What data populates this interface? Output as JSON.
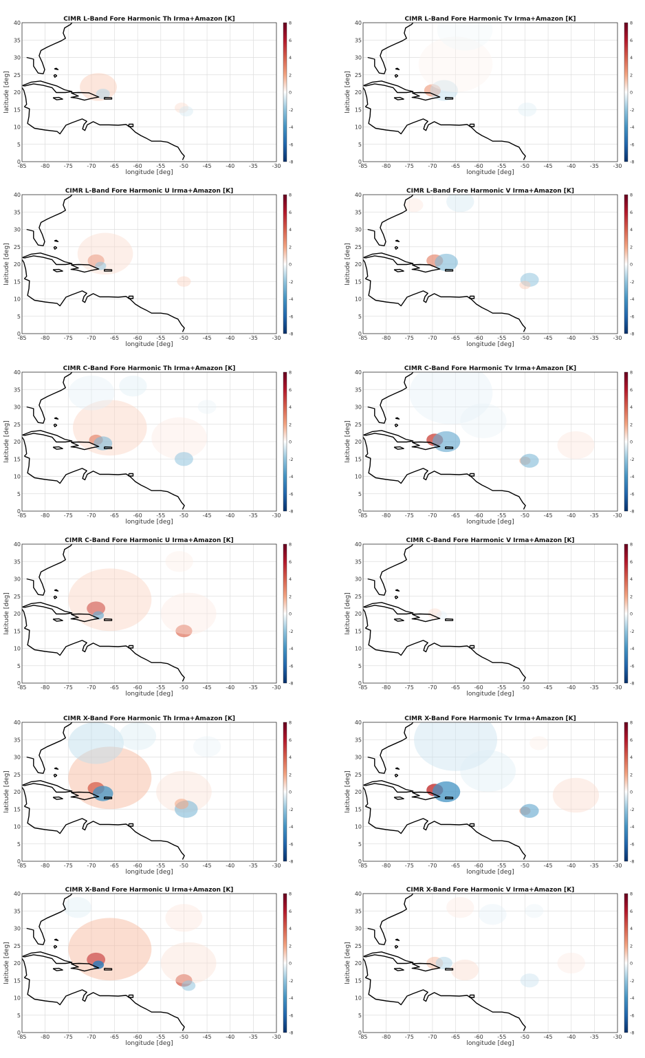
{
  "figure": {
    "colorbar": {
      "range": [
        -8,
        8
      ],
      "ticks": [
        8,
        6,
        4,
        2,
        0,
        -2,
        -4,
        -6,
        -8
      ],
      "colormap": [
        "#08306b",
        "#2166ac",
        "#4393c3",
        "#92c5de",
        "#ffffff",
        "#f4a582",
        "#d6604d",
        "#b2182b",
        "#67001f"
      ]
    },
    "axes": {
      "x_ticks": [
        -85,
        -80,
        -75,
        -70,
        -65,
        -60,
        -55,
        -50,
        -45,
        -40,
        -35,
        -30
      ],
      "y_ticks": [
        0,
        5,
        10,
        15,
        20,
        25,
        30,
        35,
        40
      ],
      "xlabel": "longitude [deg]",
      "ylabel": "latitude [deg]",
      "xlim": [
        -85,
        -30
      ],
      "ylim": [
        0,
        40
      ]
    },
    "coastline_color": "#000000",
    "grid": true
  },
  "panels": [
    {
      "title": "CIMR L-Band Fore Harmonic Th Irma+Amazon [K]",
      "features": [
        {
          "lon": -68.5,
          "lat": 21.5,
          "value": 1.2,
          "r": 4
        },
        {
          "lon": -67.5,
          "lat": 19.5,
          "value": -1.5,
          "r": 1.5
        },
        {
          "lon": -50.5,
          "lat": 15.5,
          "value": 0.8,
          "r": 1.5
        },
        {
          "lon": -49.5,
          "lat": 14.5,
          "value": -0.8,
          "r": 1.5
        }
      ]
    },
    {
      "title": "CIMR L-Band Fore Harmonic Tv Irma+Amazon [K]",
      "features": [
        {
          "lon": -70,
          "lat": 20.5,
          "value": 2.5,
          "r": 1.8
        },
        {
          "lon": -67.5,
          "lat": 20.5,
          "value": -1.2,
          "r": 3
        },
        {
          "lon": -65,
          "lat": 28,
          "value": 0.3,
          "r": 8
        },
        {
          "lon": -63,
          "lat": 38,
          "value": -0.3,
          "r": 6
        },
        {
          "lon": -49.5,
          "lat": 15,
          "value": -0.6,
          "r": 2
        }
      ]
    },
    {
      "title": "CIMR L-Band Fore Harmonic U Irma+Amazon [K]",
      "features": [
        {
          "lon": -69,
          "lat": 21,
          "value": 3,
          "r": 1.8
        },
        {
          "lon": -67,
          "lat": 23,
          "value": 0.8,
          "r": 6
        },
        {
          "lon": -68,
          "lat": 19.5,
          "value": -2,
          "r": 1.2
        },
        {
          "lon": -50,
          "lat": 15,
          "value": 1,
          "r": 1.5
        }
      ]
    },
    {
      "title": "CIMR L-Band Fore Harmonic V Irma+Amazon [K]",
      "features": [
        {
          "lon": -69.5,
          "lat": 21,
          "value": 3,
          "r": 1.8
        },
        {
          "lon": -67,
          "lat": 20.5,
          "value": -2.5,
          "r": 2.5
        },
        {
          "lon": -64,
          "lat": 38,
          "value": -0.8,
          "r": 3
        },
        {
          "lon": -74,
          "lat": 37,
          "value": 0.6,
          "r": 2
        },
        {
          "lon": -49,
          "lat": 15.5,
          "value": -2,
          "r": 2
        },
        {
          "lon": -50,
          "lat": 14,
          "value": 1.2,
          "r": 1.2
        }
      ]
    },
    {
      "title": "CIMR C-Band Fore Harmonic Th Irma+Amazon [K]",
      "features": [
        {
          "lon": -66,
          "lat": 24,
          "value": 1,
          "r": 8
        },
        {
          "lon": -69,
          "lat": 20.5,
          "value": 3,
          "r": 1.5
        },
        {
          "lon": -67.5,
          "lat": 19.5,
          "value": -2.5,
          "r": 2
        },
        {
          "lon": -70,
          "lat": 34,
          "value": -0.5,
          "r": 5
        },
        {
          "lon": -61,
          "lat": 36,
          "value": -0.6,
          "r": 3
        },
        {
          "lon": -51,
          "lat": 21,
          "value": 0.5,
          "r": 6
        },
        {
          "lon": -50,
          "lat": 15,
          "value": -2,
          "r": 2
        },
        {
          "lon": -45,
          "lat": 30,
          "value": -0.4,
          "r": 2
        }
      ]
    },
    {
      "title": "CIMR C-Band Fore Harmonic Tv Irma+Amazon [K]",
      "features": [
        {
          "lon": -69.5,
          "lat": 20.5,
          "value": 4.5,
          "r": 1.8
        },
        {
          "lon": -67,
          "lat": 20,
          "value": -3,
          "r": 3
        },
        {
          "lon": -66,
          "lat": 34,
          "value": -0.5,
          "r": 9
        },
        {
          "lon": -59,
          "lat": 26,
          "value": -0.4,
          "r": 5
        },
        {
          "lon": -50,
          "lat": 14.5,
          "value": 2,
          "r": 1.2
        },
        {
          "lon": -49,
          "lat": 14.5,
          "value": -2.5,
          "r": 2
        },
        {
          "lon": -39,
          "lat": 19,
          "value": 0.6,
          "r": 4
        }
      ]
    },
    {
      "title": "CIMR C-Band Fore Harmonic U Irma+Amazon [K]",
      "features": [
        {
          "lon": -69,
          "lat": 21.5,
          "value": 5,
          "r": 2
        },
        {
          "lon": -66,
          "lat": 24,
          "value": 1,
          "r": 9
        },
        {
          "lon": -68.5,
          "lat": 19.5,
          "value": -3,
          "r": 1.2
        },
        {
          "lon": -50,
          "lat": 15,
          "value": 3.5,
          "r": 1.8
        },
        {
          "lon": -49,
          "lat": 20,
          "value": 0.5,
          "r": 6
        },
        {
          "lon": -51,
          "lat": 35,
          "value": 0.4,
          "r": 3
        }
      ]
    },
    {
      "title": "CIMR C-Band Fore Harmonic V Irma+Amazon [K]",
      "features": [
        {
          "lon": -69.5,
          "lat": 20,
          "value": 0.8,
          "r": 1.5
        },
        {
          "lon": -68,
          "lat": 19.5,
          "value": -0.5,
          "r": 1.2
        }
      ]
    },
    {
      "title": "CIMR X-Band Fore Harmonic Th Irma+Amazon [K]",
      "features": [
        {
          "lon": -66,
          "lat": 24,
          "value": 1.5,
          "r": 9
        },
        {
          "lon": -69,
          "lat": 21,
          "value": 4,
          "r": 1.8
        },
        {
          "lon": -67.5,
          "lat": 19.5,
          "value": -4,
          "r": 2.2
        },
        {
          "lon": -69,
          "lat": 34,
          "value": -1.2,
          "r": 6
        },
        {
          "lon": -60,
          "lat": 36,
          "value": -0.7,
          "r": 4
        },
        {
          "lon": -50,
          "lat": 20,
          "value": 0.7,
          "r": 6
        },
        {
          "lon": -49.5,
          "lat": 15,
          "value": -2.5,
          "r": 2.5
        },
        {
          "lon": -50.5,
          "lat": 16.5,
          "value": 2,
          "r": 1.5
        },
        {
          "lon": -45,
          "lat": 33,
          "value": -0.4,
          "r": 3
        }
      ]
    },
    {
      "title": "CIMR X-Band Fore Harmonic Tv Irma+Amazon [K]",
      "features": [
        {
          "lon": -69.5,
          "lat": 20.5,
          "value": 5,
          "r": 1.8
        },
        {
          "lon": -67,
          "lat": 20,
          "value": -4,
          "r": 3
        },
        {
          "lon": -65,
          "lat": 35,
          "value": -1,
          "r": 9
        },
        {
          "lon": -58,
          "lat": 26,
          "value": -0.6,
          "r": 6
        },
        {
          "lon": -50,
          "lat": 14.5,
          "value": 2.5,
          "r": 1.2
        },
        {
          "lon": -49,
          "lat": 14.5,
          "value": -3,
          "r": 2
        },
        {
          "lon": -39,
          "lat": 19,
          "value": 0.8,
          "r": 5
        },
        {
          "lon": -47,
          "lat": 34,
          "value": 0.4,
          "r": 2
        }
      ]
    },
    {
      "title": "CIMR X-Band Fore Harmonic U Irma+Amazon [K]",
      "features": [
        {
          "lon": -69,
          "lat": 21,
          "value": 6,
          "r": 2
        },
        {
          "lon": -66,
          "lat": 24,
          "value": 1.5,
          "r": 9
        },
        {
          "lon": -68.5,
          "lat": 19.5,
          "value": -5,
          "r": 1.2
        },
        {
          "lon": -50,
          "lat": 15,
          "value": 4,
          "r": 1.8
        },
        {
          "lon": -49,
          "lat": 20,
          "value": 0.7,
          "r": 6
        },
        {
          "lon": -50,
          "lat": 33,
          "value": 0.6,
          "r": 4
        },
        {
          "lon": -49,
          "lat": 13.5,
          "value": -2,
          "r": 1.5
        },
        {
          "lon": -73,
          "lat": 36,
          "value": -0.6,
          "r": 3
        }
      ]
    },
    {
      "title": "CIMR X-Band Fore Harmonic V Irma+Amazon [K]",
      "features": [
        {
          "lon": -69.5,
          "lat": 20,
          "value": 1.5,
          "r": 1.8
        },
        {
          "lon": -67.5,
          "lat": 20,
          "value": -1.5,
          "r": 1.8
        },
        {
          "lon": -63,
          "lat": 18,
          "value": 0.8,
          "r": 3
        },
        {
          "lon": -64,
          "lat": 36,
          "value": 0.5,
          "r": 3
        },
        {
          "lon": -57,
          "lat": 34,
          "value": -0.5,
          "r": 3
        },
        {
          "lon": -48,
          "lat": 35,
          "value": -0.4,
          "r": 2
        },
        {
          "lon": -49,
          "lat": 15,
          "value": -1,
          "r": 2
        },
        {
          "lon": -40,
          "lat": 20,
          "value": 0.5,
          "r": 3
        }
      ]
    }
  ]
}
